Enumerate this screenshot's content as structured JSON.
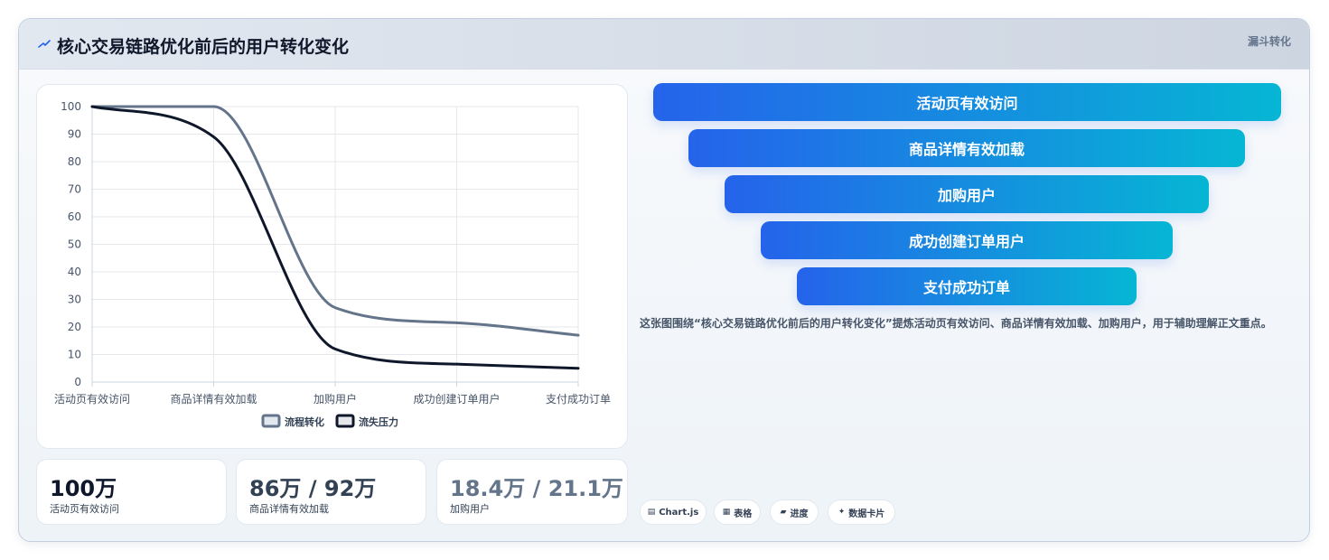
{
  "header": {
    "title": "核心交易链路优化前后的用户转化变化",
    "tag": "漏斗转化"
  },
  "chart_data": {
    "type": "line",
    "categories": [
      "活动页有效访问",
      "商品详情有效加载",
      "加购用户",
      "成功创建订单用户",
      "支付成功订单"
    ],
    "series": [
      {
        "name": "流程转化",
        "values": [
          100,
          100,
          27,
          21.5,
          17
        ],
        "color": "#64748b"
      },
      {
        "name": "流失压力",
        "values": [
          100,
          89,
          12,
          6.5,
          5
        ],
        "color": "#0f172a"
      }
    ],
    "ylim": [
      0,
      100
    ],
    "yticks": [
      "0",
      "10",
      "20",
      "30",
      "40",
      "50",
      "60",
      "70",
      "80",
      "90",
      "100"
    ],
    "grid": true,
    "legend": "bottom",
    "smooth": true
  },
  "stats": [
    {
      "value": "100万",
      "label": "活动页有效访问",
      "color": "#0f172a"
    },
    {
      "value": "86万 / 92万",
      "label": "商品详情有效加载",
      "color": "#334155"
    },
    {
      "value": "18.4万 / 21.1万",
      "label": "加购用户",
      "color": "#64748b"
    }
  ],
  "funnel": {
    "stages": [
      "活动页有效访问",
      "商品详情有效加载",
      "加购用户",
      "成功创建订单用户",
      "支付成功订单"
    ],
    "gradient": [
      "#2563eb",
      "#06b6d4"
    ]
  },
  "description": "这张图围绕“核心交易链路优化前后的用户转化变化”提炼活动页有效访问、商品详情有效加载、加购用户，用于辅助理解正文重点。",
  "chips": [
    {
      "icon": "▤",
      "label": "Chart.js",
      "icon_name": "chart-icon"
    },
    {
      "icon": "▦",
      "label": "表格",
      "icon_name": "table-icon"
    },
    {
      "icon": "▰",
      "label": "进度",
      "icon_name": "progress-icon"
    },
    {
      "icon": "✦",
      "label": "数据卡片",
      "icon_name": "sparkle-icon"
    }
  ]
}
